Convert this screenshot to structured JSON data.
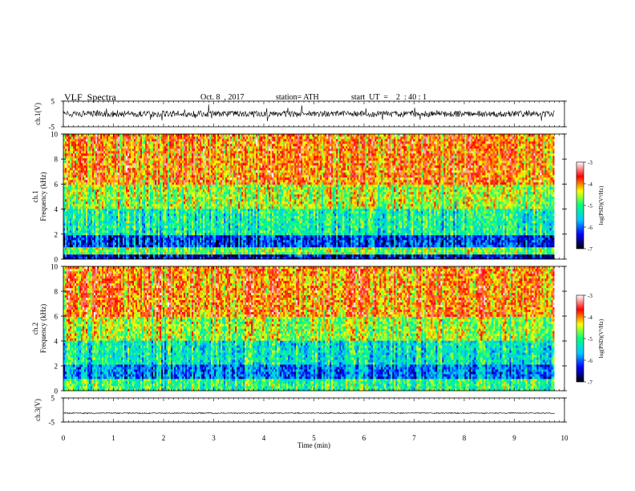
{
  "header": {
    "title": "VLF  Spectra",
    "date": "Oct. 8  , 2017",
    "station": "station= ATH",
    "start": "start  UT  =    2  : 40 : 1"
  },
  "chart_data": {
    "type": "heatmap",
    "xlabel": "Time  (min)",
    "xlim": [
      0,
      10
    ],
    "x_ticks": [
      "0",
      "1",
      "2",
      "3",
      "4",
      "5",
      "6",
      "7",
      "8",
      "9",
      "10"
    ],
    "data_end_min": 9.8,
    "panels": [
      {
        "id": "ch1-waveform",
        "type": "line",
        "ylabel": "ch.1(V)",
        "ylim": [
          -5,
          5
        ],
        "y_ticks": [
          "5",
          "-5"
        ],
        "baseline": 0,
        "noise_amplitude": 1.2
      },
      {
        "id": "ch1-spectrogram",
        "type": "heatmap",
        "ylabel_line1": "ch.1",
        "ylabel_line2": "Frequency  (kHz)",
        "ylim": [
          0,
          10
        ],
        "y_ticks": [
          "0",
          "2",
          "4",
          "6",
          "8",
          "10"
        ],
        "bands": [
          {
            "from_khz": 0.0,
            "to_khz": 0.3,
            "log_psd": -6.5
          },
          {
            "from_khz": 0.3,
            "to_khz": 1.0,
            "log_psd": -4.8
          },
          {
            "from_khz": 1.0,
            "to_khz": 2.0,
            "log_psd": -6.2
          },
          {
            "from_khz": 2.0,
            "to_khz": 4.0,
            "log_psd": -5.2
          },
          {
            "from_khz": 4.0,
            "to_khz": 6.0,
            "log_psd": -4.6
          },
          {
            "from_khz": 6.0,
            "to_khz": 10.0,
            "log_psd": -4.0
          }
        ]
      },
      {
        "id": "ch2-spectrogram",
        "type": "heatmap",
        "ylabel_line1": "ch.2",
        "ylabel_line2": "Frequency  (kHz)",
        "ylim": [
          0,
          10
        ],
        "y_ticks": [
          "0",
          "2",
          "4",
          "6",
          "8",
          "10"
        ],
        "bands": [
          {
            "from_khz": 0.0,
            "to_khz": 1.0,
            "log_psd": -5.0
          },
          {
            "from_khz": 1.0,
            "to_khz": 2.2,
            "log_psd": -5.9
          },
          {
            "from_khz": 2.2,
            "to_khz": 4.0,
            "log_psd": -5.3
          },
          {
            "from_khz": 4.0,
            "to_khz": 6.0,
            "log_psd": -4.6
          },
          {
            "from_khz": 6.0,
            "to_khz": 10.0,
            "log_psd": -4.0
          }
        ]
      },
      {
        "id": "ch3-waveform",
        "type": "line",
        "ylabel": "ch.3(V)",
        "ylim": [
          -5,
          5
        ],
        "y_ticks": [
          "5",
          "-5"
        ],
        "baseline": -1.3,
        "noise_amplitude": 0.25
      }
    ],
    "colorbar": {
      "label": "log(PSD)(V²/Hz)",
      "range": [
        -7,
        -3
      ],
      "ticks": [
        "-3",
        "-4",
        "-5",
        "-6",
        "-7"
      ],
      "colors": [
        "#000000",
        "#0000ff",
        "#00c8ff",
        "#00ff80",
        "#ffff00",
        "#ff0000",
        "#ffffff"
      ]
    }
  }
}
